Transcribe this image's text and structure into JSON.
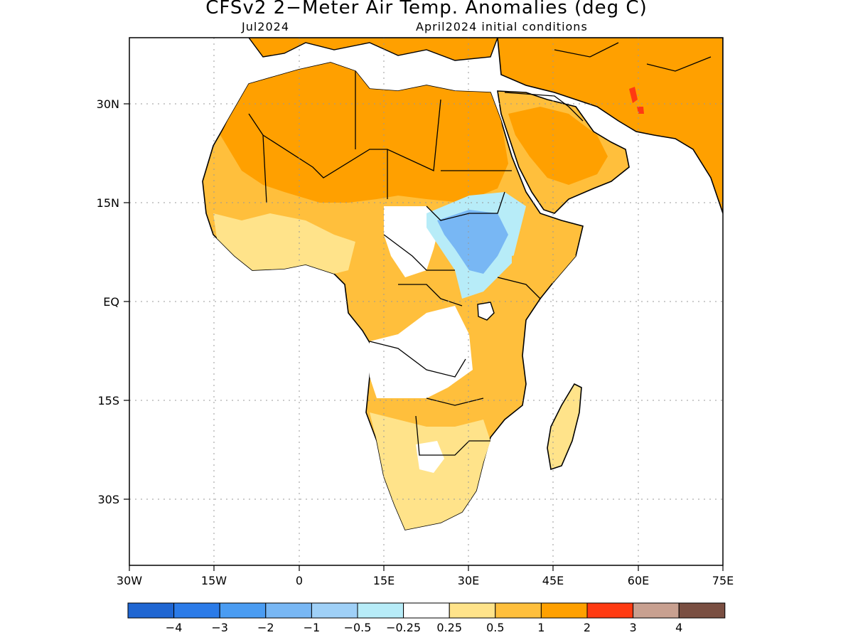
{
  "title": "CFSv2 2−Meter Air Temp. Anomalies (deg C)",
  "valid_month": "Jul2024",
  "initial_conditions": "April2024 initial conditions",
  "map": {
    "lon_labels": [
      "30W",
      "15W",
      "0",
      "15E",
      "30E",
      "45E",
      "60E",
      "75E"
    ],
    "lat_labels": [
      "30N",
      "15N",
      "EQ",
      "15S",
      "30S"
    ],
    "extent": {
      "lon_min": -30,
      "lon_max": 75,
      "lat_min": -40,
      "lat_max": 40
    }
  },
  "legend": {
    "colors": [
      "#1f66d2",
      "#2b7be8",
      "#4a9cf2",
      "#78b7f4",
      "#9fd0f7",
      "#b7ecf8",
      "#ffffff",
      "#ffe38a",
      "#ffbf3c",
      "#ffa000",
      "#ff3a12",
      "#c8a090",
      "#7a4f42"
    ],
    "labels": [
      "−4",
      "−3",
      "−2",
      "−1",
      "−0.5",
      "−0.25",
      "0.25",
      "0.5",
      "1",
      "2",
      "3",
      "4"
    ]
  },
  "colors": {
    "light_orange": "#ffbf3c",
    "orange": "#ffa000",
    "yellow": "#ffe38a",
    "light_blue": "#b7ecf8",
    "blue": "#78b7f4",
    "red": "#ff3a12"
  }
}
